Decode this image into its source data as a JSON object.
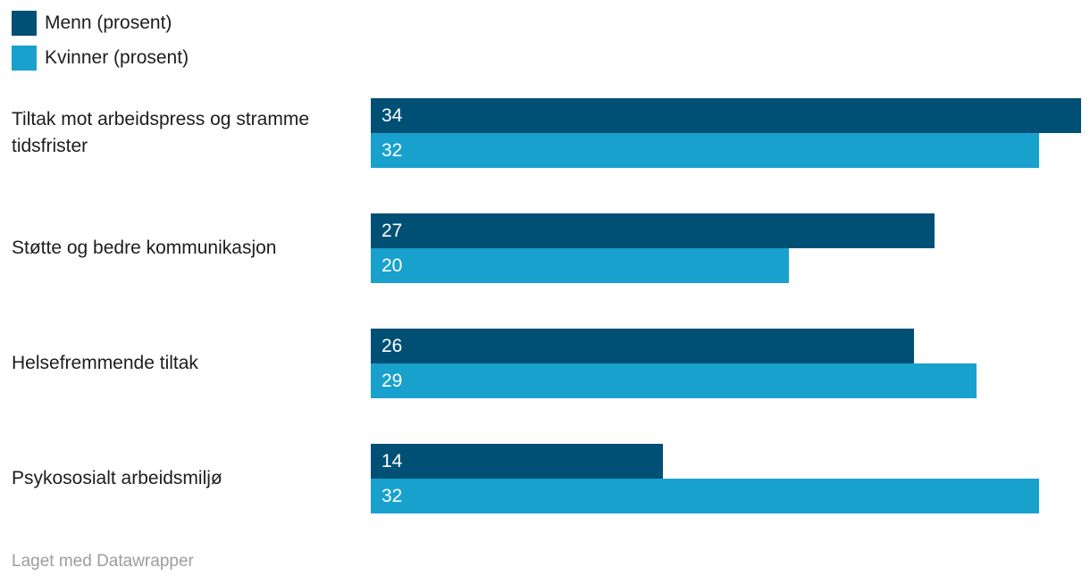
{
  "chart_data": {
    "type": "bar",
    "orientation": "horizontal",
    "title": "",
    "categories": [
      "Tiltak mot arbeidspress og stramme tidsfrister",
      "Støtte og bedre kommunikasjon",
      "Helsefremmende tiltak",
      "Psykososialt arbeidsmiljø"
    ],
    "series": [
      {
        "name": "Menn (prosent)",
        "color": "#005076",
        "values": [
          34,
          27,
          26,
          14
        ]
      },
      {
        "name": "Kvinner (prosent)",
        "color": "#18a1cc",
        "values": [
          32,
          20,
          29,
          32
        ]
      }
    ],
    "xlim": [
      0,
      34
    ],
    "grid": false,
    "value_labels": "inside-start",
    "legend_position": "top-left"
  },
  "footer": {
    "credit": "Laget med Datawrapper"
  }
}
